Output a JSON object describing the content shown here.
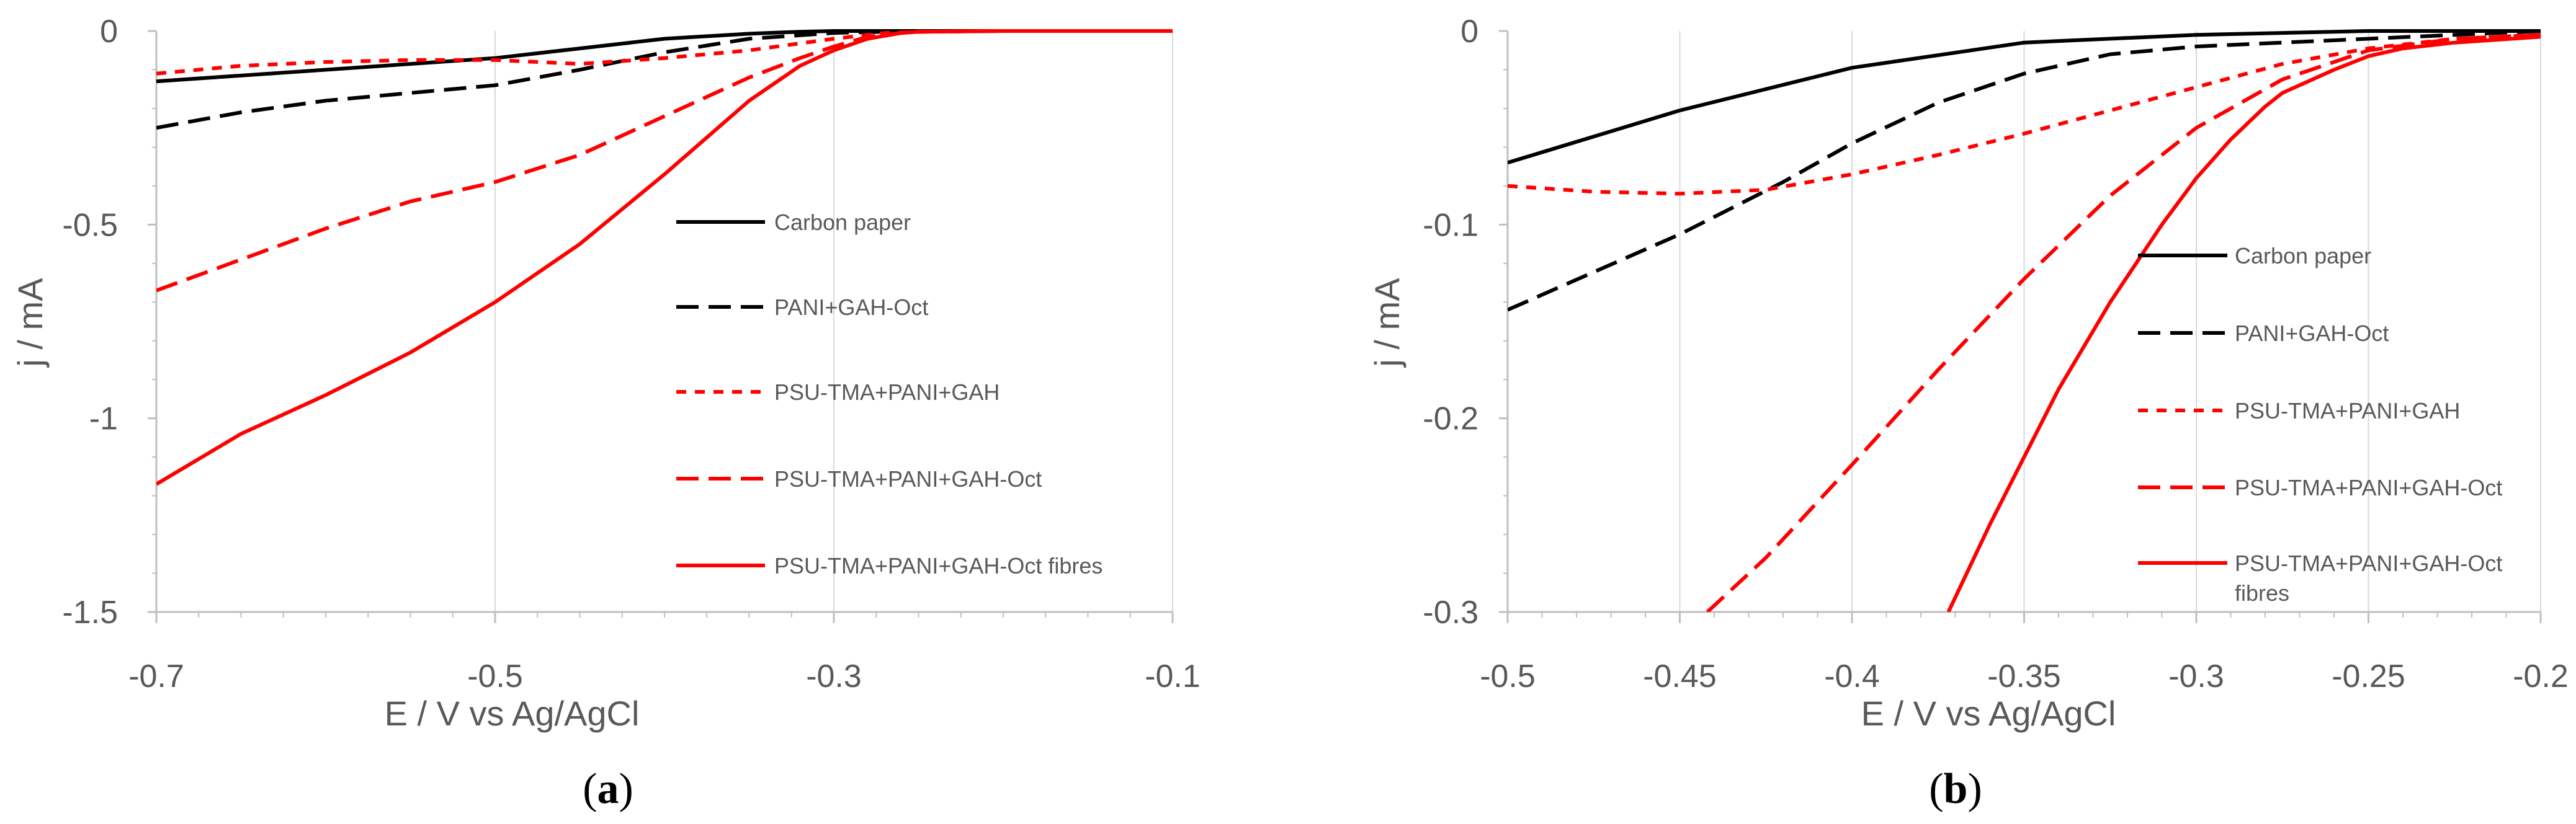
{
  "figure": {
    "panels": [
      {
        "label_open": "(",
        "label_letter": "a",
        "label_close": ")"
      },
      {
        "label_open": "(",
        "label_letter": "b",
        "label_close": ")"
      }
    ]
  },
  "chart_data": [
    {
      "type": "line",
      "panel": "a",
      "title": "",
      "xlabel": "E / V vs Ag/AgCl",
      "ylabel": "j / mA",
      "xlim": [
        -0.7,
        -0.1
      ],
      "ylim": [
        -1.5,
        0
      ],
      "xticks": [
        -0.7,
        -0.5,
        -0.3,
        -0.1
      ],
      "xtick_labels": [
        "-0.7",
        "-0.5",
        "-0.3",
        "-0.1"
      ],
      "yticks": [
        0,
        -0.5,
        -1,
        -1.5
      ],
      "ytick_labels": [
        "0",
        "-0.5",
        "-1",
        "-1.5"
      ],
      "grid": "vertical",
      "legend_position": "center-right",
      "series": [
        {
          "name": "Carbon paper",
          "color": "#000000",
          "dash": "solid",
          "x": [
            -0.7,
            -0.6,
            -0.5,
            -0.45,
            -0.4,
            -0.35,
            -0.32,
            -0.3,
            -0.25,
            -0.2,
            -0.1
          ],
          "y": [
            -0.13,
            -0.1,
            -0.07,
            -0.045,
            -0.02,
            -0.007,
            -0.002,
            0,
            0,
            0,
            0
          ]
        },
        {
          "name": "PANI+GAH-Oct",
          "color": "#000000",
          "dash": "long",
          "x": [
            -0.7,
            -0.65,
            -0.6,
            -0.55,
            -0.5,
            -0.45,
            -0.4,
            -0.35,
            -0.3,
            -0.27,
            -0.25,
            -0.2,
            -0.1
          ],
          "y": [
            -0.25,
            -0.21,
            -0.18,
            -0.16,
            -0.14,
            -0.1,
            -0.055,
            -0.02,
            -0.005,
            -0.002,
            0,
            0,
            0
          ]
        },
        {
          "name": "PSU-TMA+PANI+GAH",
          "color": "#ff0000",
          "dash": "short",
          "x": [
            -0.7,
            -0.65,
            -0.6,
            -0.55,
            -0.5,
            -0.45,
            -0.4,
            -0.35,
            -0.3,
            -0.27,
            -0.25,
            -0.2,
            -0.1
          ],
          "y": [
            -0.11,
            -0.09,
            -0.08,
            -0.075,
            -0.075,
            -0.085,
            -0.07,
            -0.05,
            -0.02,
            -0.005,
            -0.002,
            0,
            0
          ]
        },
        {
          "name": "PSU-TMA+PANI+GAH-Oct",
          "color": "#ff0000",
          "dash": "long",
          "x": [
            -0.7,
            -0.65,
            -0.6,
            -0.55,
            -0.5,
            -0.45,
            -0.4,
            -0.35,
            -0.32,
            -0.3,
            -0.28,
            -0.26,
            -0.25,
            -0.2,
            -0.1
          ],
          "y": [
            -0.67,
            -0.59,
            -0.51,
            -0.44,
            -0.39,
            -0.32,
            -0.22,
            -0.12,
            -0.07,
            -0.04,
            -0.015,
            -0.005,
            -0.002,
            0,
            0
          ]
        },
        {
          "name": "PSU-TMA+PANI+GAH-Oct fibres",
          "color": "#ff0000",
          "dash": "solid",
          "x": [
            -0.7,
            -0.65,
            -0.6,
            -0.55,
            -0.5,
            -0.45,
            -0.4,
            -0.35,
            -0.32,
            -0.3,
            -0.28,
            -0.26,
            -0.25,
            -0.2,
            -0.1
          ],
          "y": [
            -1.17,
            -1.04,
            -0.94,
            -0.83,
            -0.7,
            -0.55,
            -0.37,
            -0.18,
            -0.09,
            -0.05,
            -0.02,
            -0.005,
            -0.002,
            0,
            0
          ]
        }
      ]
    },
    {
      "type": "line",
      "panel": "b",
      "title": "",
      "xlabel": "E / V vs Ag/AgCl",
      "ylabel": "j / mA",
      "xlim": [
        -0.5,
        -0.2
      ],
      "ylim": [
        -0.3,
        0
      ],
      "xticks": [
        -0.5,
        -0.45,
        -0.4,
        -0.35,
        -0.3,
        -0.25,
        -0.2
      ],
      "xtick_labels": [
        "-0.5",
        "-0.45",
        "-0.4",
        "-0.35",
        "-0.3",
        "-0.25",
        "-0.2"
      ],
      "yticks": [
        0,
        -0.1,
        -0.2,
        -0.3
      ],
      "ytick_labels": [
        "0",
        "-0.1",
        "-0.2",
        "-0.3"
      ],
      "grid": "vertical",
      "legend_position": "center-right",
      "series": [
        {
          "name": "Carbon paper",
          "color": "#000000",
          "dash": "solid",
          "x": [
            -0.5,
            -0.45,
            -0.4,
            -0.35,
            -0.3,
            -0.25,
            -0.2
          ],
          "y": [
            -0.068,
            -0.041,
            -0.019,
            -0.006,
            -0.002,
            0,
            0
          ]
        },
        {
          "name": "PANI+GAH-Oct",
          "color": "#000000",
          "dash": "long",
          "x": [
            -0.5,
            -0.45,
            -0.42,
            -0.4,
            -0.375,
            -0.35,
            -0.325,
            -0.3,
            -0.275,
            -0.25,
            -0.225,
            -0.2
          ],
          "y": [
            -0.144,
            -0.105,
            -0.078,
            -0.058,
            -0.037,
            -0.022,
            -0.012,
            -0.008,
            -0.006,
            -0.004,
            -0.002,
            0
          ]
        },
        {
          "name": "PSU-TMA+PANI+GAH",
          "color": "#ff0000",
          "dash": "short",
          "x": [
            -0.5,
            -0.475,
            -0.45,
            -0.425,
            -0.4,
            -0.375,
            -0.35,
            -0.325,
            -0.3,
            -0.275,
            -0.25,
            -0.225,
            -0.2
          ],
          "y": [
            -0.08,
            -0.083,
            -0.084,
            -0.082,
            -0.074,
            -0.064,
            -0.053,
            -0.041,
            -0.029,
            -0.017,
            -0.009,
            -0.004,
            -0.002
          ]
        },
        {
          "name": "PSU-TMA+PANI+GAH-Oct",
          "color": "#ff0000",
          "dash": "long",
          "x": [
            -0.442,
            -0.425,
            -0.4,
            -0.375,
            -0.35,
            -0.325,
            -0.3,
            -0.275,
            -0.25,
            -0.225,
            -0.2
          ],
          "y": [
            -0.3,
            -0.272,
            -0.224,
            -0.175,
            -0.128,
            -0.085,
            -0.05,
            -0.025,
            -0.01,
            -0.004,
            -0.002
          ]
        },
        {
          "name": "PSU-TMA+PANI+GAH-Oct fibres",
          "color": "#ff0000",
          "dash": "solid",
          "x": [
            -0.372,
            -0.36,
            -0.35,
            -0.34,
            -0.325,
            -0.31,
            -0.3,
            -0.29,
            -0.28,
            -0.275,
            -0.26,
            -0.25,
            -0.24,
            -0.225,
            -0.2
          ],
          "y": [
            -0.3,
            -0.255,
            -0.22,
            -0.185,
            -0.14,
            -0.1,
            -0.076,
            -0.056,
            -0.039,
            -0.032,
            -0.02,
            -0.013,
            -0.009,
            -0.006,
            -0.003
          ]
        }
      ]
    }
  ]
}
